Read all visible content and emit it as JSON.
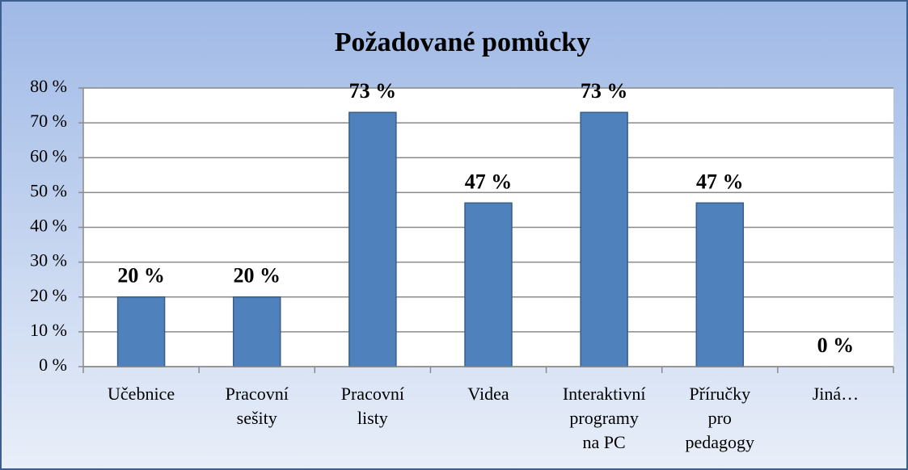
{
  "chart_data": {
    "type": "bar",
    "title": "Požadované pomůcky",
    "categories": [
      "Učebnice",
      "Pracovní\nsešity",
      "Pracovní\nlisty",
      "Videa",
      "Interaktivní\nprogramy\nna PC",
      "Příručky\npro\npedagogy",
      "Jiná…"
    ],
    "values": [
      20,
      20,
      73,
      47,
      73,
      47,
      0
    ],
    "value_labels": [
      "20 %",
      "20 %",
      "73 %",
      "47 %",
      "73 %",
      "47 %",
      "0 %"
    ],
    "color": "#4f81bd",
    "ylim": [
      0,
      80
    ],
    "yticks": [
      {
        "value": 0,
        "label": "0 %"
      },
      {
        "value": 10,
        "label": "10 %"
      },
      {
        "value": 20,
        "label": "20 %"
      },
      {
        "value": 30,
        "label": "30 %"
      },
      {
        "value": 40,
        "label": "40 %"
      },
      {
        "value": 50,
        "label": "50 %"
      },
      {
        "value": 60,
        "label": "60 %"
      },
      {
        "value": 70,
        "label": "70 %"
      },
      {
        "value": 80,
        "label": "80 %"
      }
    ],
    "grid": true
  }
}
